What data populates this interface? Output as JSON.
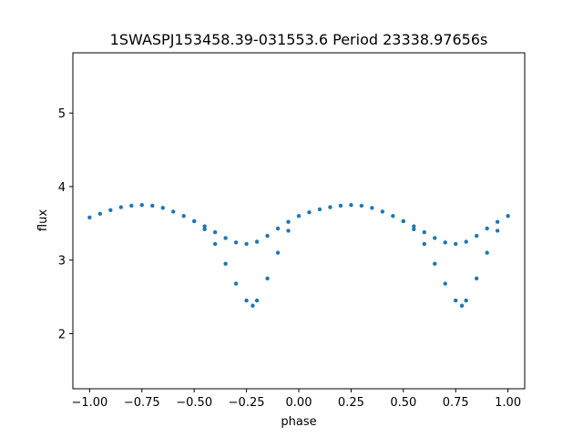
{
  "chart_data": {
    "type": "scatter",
    "title": "1SWASPJ153458.39-031553.6 Period 23338.97656s",
    "xlabel": "phase",
    "ylabel": "flux",
    "xlim": [
      -1.08,
      1.08
    ],
    "ylim": [
      1.25,
      5.82
    ],
    "x_ticks": [
      -1.0,
      -0.75,
      -0.5,
      -0.25,
      0.0,
      0.25,
      0.5,
      0.75,
      1.0
    ],
    "x_tick_labels": [
      "−1.00",
      "−0.75",
      "−0.50",
      "−0.25",
      "0.00",
      "0.25",
      "0.50",
      "0.75",
      "1.00"
    ],
    "y_ticks": [
      2,
      3,
      4,
      5
    ],
    "y_tick_labels": [
      "2",
      "3",
      "4",
      "5"
    ],
    "grid": false,
    "marker_color": "#1f77b4",
    "series": [
      {
        "description_points": "phase-folded light curve; upper branch of the eclipsing binary, flux vs phase",
        "x": [
          -1.0,
          -0.95,
          -0.9,
          -0.85,
          -0.8,
          -0.75,
          -0.7,
          -0.65,
          -0.6,
          -0.55,
          -0.5,
          -0.45,
          -0.4,
          -0.35,
          -0.3,
          -0.25,
          -0.2,
          -0.15,
          -0.1,
          -0.05,
          0.0,
          0.05,
          0.1,
          0.15,
          0.2,
          0.25,
          0.3,
          0.35,
          0.4,
          0.45,
          0.5,
          0.55,
          0.6,
          0.65,
          0.7,
          0.75,
          0.8,
          0.85,
          0.9,
          0.95,
          1.0
        ],
        "y": [
          3.58,
          3.63,
          3.68,
          3.72,
          3.74,
          3.75,
          3.74,
          3.71,
          3.66,
          3.6,
          3.53,
          3.46,
          3.38,
          3.3,
          3.24,
          3.22,
          3.25,
          3.33,
          3.43,
          3.52,
          3.6,
          3.65,
          3.69,
          3.72,
          3.74,
          3.75,
          3.74,
          3.71,
          3.66,
          3.6,
          3.53,
          3.46,
          3.38,
          3.3,
          3.24,
          3.22,
          3.25,
          3.33,
          3.43,
          3.52,
          3.6
        ]
      },
      {
        "description_points": "lower branch (deeper eclipse), flux vs phase",
        "x": [
          -0.5,
          -0.45,
          -0.4,
          -0.35,
          -0.3,
          -0.25,
          -0.22,
          -0.2,
          -0.15,
          -0.1,
          -0.05,
          0.5,
          0.55,
          0.6,
          0.65,
          0.7,
          0.75,
          0.78,
          0.8,
          0.85,
          0.9,
          0.95
        ],
        "y": [
          3.53,
          3.42,
          3.22,
          2.95,
          2.68,
          2.45,
          2.38,
          2.45,
          2.75,
          3.1,
          3.4,
          3.53,
          3.42,
          3.22,
          2.95,
          2.68,
          2.45,
          2.38,
          2.45,
          2.75,
          3.1,
          3.4
        ]
      }
    ]
  }
}
